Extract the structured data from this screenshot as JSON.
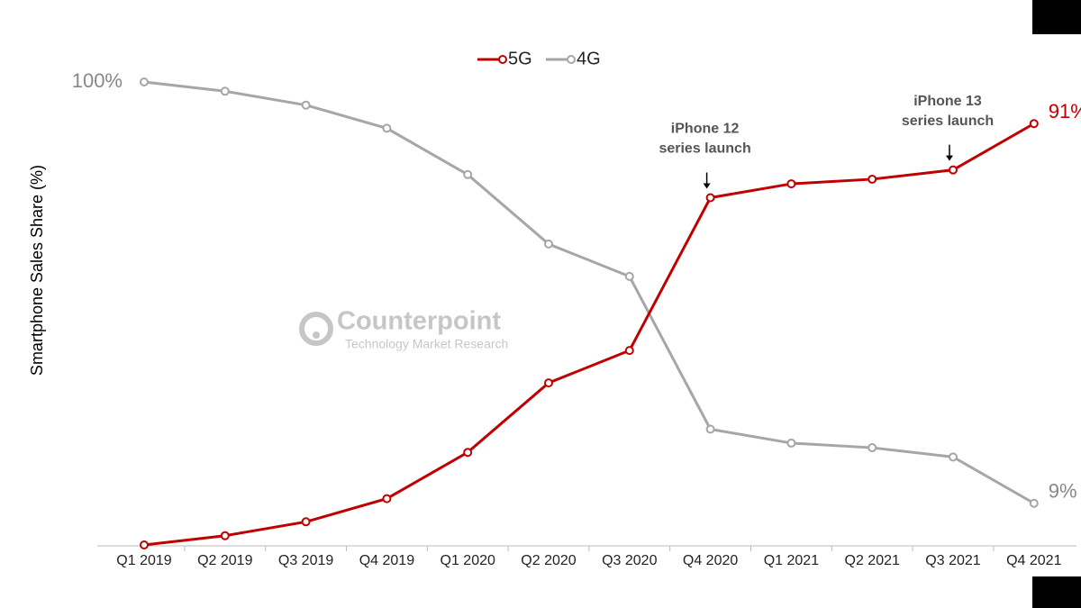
{
  "chart_data": {
    "type": "line",
    "y_label": "Smartphone Sales Share (%)",
    "categories": [
      "Q1 2019",
      "Q2 2019",
      "Q3 2019",
      "Q4 2019",
      "Q1 2020",
      "Q2 2020",
      "Q3 2020",
      "Q4 2020",
      "Q1 2021",
      "Q2 2021",
      "Q3 2021",
      "Q4 2021"
    ],
    "series": [
      {
        "name": "5G",
        "color": "#c00000",
        "values": [
          0,
          2,
          5,
          10,
          20,
          35,
          42,
          75,
          78,
          79,
          81,
          91
        ],
        "value_labels": [
          null,
          null,
          null,
          null,
          null,
          null,
          null,
          null,
          null,
          null,
          null,
          "91%"
        ]
      },
      {
        "name": "4G",
        "color": "#a6a6a6",
        "values": [
          100,
          98,
          95,
          90,
          80,
          65,
          58,
          25,
          22,
          21,
          19,
          9
        ],
        "value_labels": [
          "100%",
          null,
          null,
          null,
          null,
          null,
          null,
          null,
          null,
          null,
          null,
          "9%"
        ]
      }
    ],
    "ylim": [
      0,
      100
    ],
    "legend": "top",
    "annotations": [
      {
        "x": "Q4 2020",
        "lines": [
          "iPhone 12",
          "series launch"
        ]
      },
      {
        "x": "Q3 2021",
        "lines": [
          "iPhone 13",
          "series launch"
        ]
      }
    ],
    "watermark": {
      "title": "Counterpoint",
      "subtitle": "Technology Market Research"
    }
  }
}
